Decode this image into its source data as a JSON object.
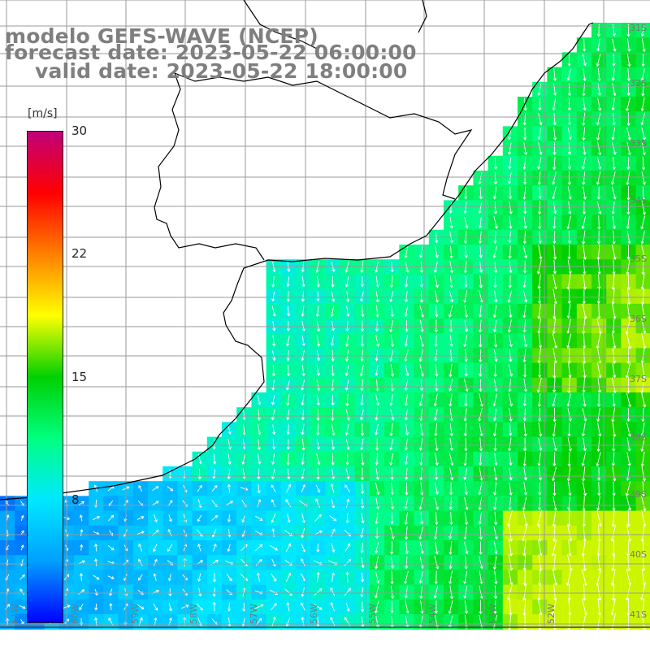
{
  "header": {
    "line1": "modelo GEFS-WAVE (NCEP)",
    "line2": "forecast date: 2023-05-22 06:00:00",
    "line3": "valid date: 2023-05-22 18:00:00"
  },
  "colorbar": {
    "units": "[m/s]",
    "min": 0,
    "max": 30,
    "tick_labels": [
      "30",
      "22",
      "15",
      "8"
    ],
    "tick_values": [
      30,
      22,
      15,
      8
    ],
    "stops": [
      "#0000ff",
      "#00a0ff",
      "#00e8ff",
      "#00ff80",
      "#00d000",
      "#ffff00",
      "#ff8000",
      "#ff0000",
      "#c0007a"
    ]
  },
  "axes": {
    "lon_labels": [
      "61W",
      "60W",
      "59W",
      "58W",
      "57W",
      "56W",
      "55W",
      "54W",
      "53W",
      "52W"
    ],
    "lat_labels": [
      "31S",
      "32S",
      "33S",
      "34S",
      "35S",
      "36S",
      "37S",
      "38S",
      "39S",
      "40S",
      "41S"
    ]
  },
  "colors": {
    "grid": "#9a9a9a",
    "coast": "#000000",
    "land": "#ffffff",
    "arrow": "#ffffff"
  }
}
